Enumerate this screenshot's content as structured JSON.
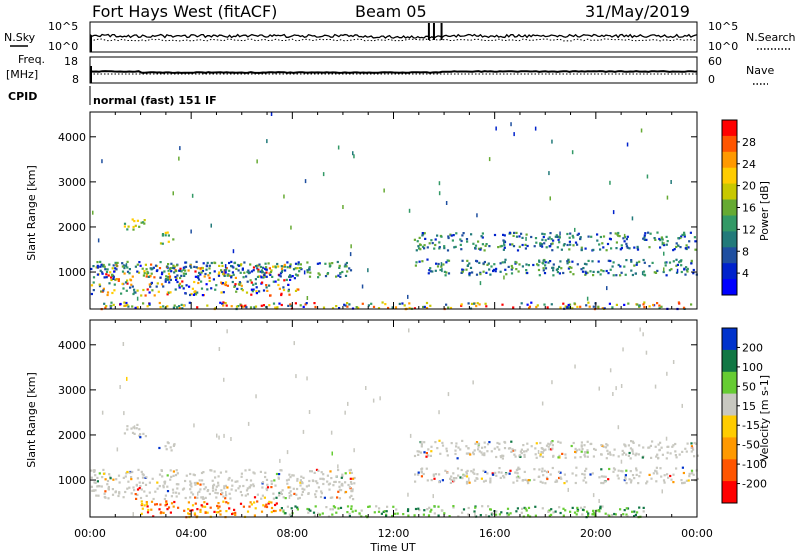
{
  "header": {
    "title": "Fort Hays West (fitACF)",
    "beam": "Beam 05",
    "date": "31/May/2019"
  },
  "top_panels": {
    "nsky_label": "N.Sky",
    "nsearch_label": "N.Search",
    "noise_ticks": [
      "10^5",
      "10^0"
    ],
    "freq_label": "Freq.",
    "freq_unit": "[MHz]",
    "freq_ticks": [
      "18",
      "8"
    ],
    "nave_label": "Nave",
    "nave_ticks": [
      "60",
      "0"
    ],
    "cpid_label": "CPID",
    "cpid_value": "normal (fast) 151 IF"
  },
  "x_axis": {
    "label": "Time UT",
    "ticks": [
      "00:00",
      "04:00",
      "08:00",
      "12:00",
      "16:00",
      "20:00",
      "00:00"
    ]
  },
  "chart_data": [
    {
      "type": "heatmap",
      "panel": "power",
      "ylabel": "Slant Range [km]",
      "y_ticks": [
        1000,
        2000,
        3000,
        4000
      ],
      "ylim": [
        180,
        4550
      ],
      "xlim_hours": [
        0,
        24
      ],
      "colorbar_label": "Power [dB]",
      "colorbar_ticks": [
        "28",
        "24",
        "20",
        "16",
        "12",
        "8",
        "4"
      ],
      "colorbar_colors": [
        "#ff0000",
        "#ff5500",
        "#ff9900",
        "#ffcc00",
        "#c8c800",
        "#66aa33",
        "#339966",
        "#227a7a",
        "#1f4fa0",
        "#0022cc",
        "#0000ff"
      ],
      "regions": [
        {
          "x": [
            0.0,
            8.2
          ],
          "y": [
            500,
            1200
          ],
          "level": "mixed"
        },
        {
          "x": [
            0.0,
            10.5
          ],
          "y": [
            900,
            1250
          ],
          "level": "low"
        },
        {
          "x": [
            1.3,
            2.2
          ],
          "y": [
            1950,
            2250
          ],
          "level": "mid"
        },
        {
          "x": [
            2.6,
            3.3
          ],
          "y": [
            1650,
            1900
          ],
          "level": "mid"
        },
        {
          "x": [
            12.8,
            24.0
          ],
          "y": [
            950,
            1300
          ],
          "level": "low"
        },
        {
          "x": [
            12.8,
            24.0
          ],
          "y": [
            1500,
            1900
          ],
          "level": "low"
        },
        {
          "x": [
            0.0,
            24.0
          ],
          "y": [
            200,
            350
          ],
          "level": "mixed"
        }
      ]
    },
    {
      "type": "heatmap",
      "panel": "velocity",
      "ylabel": "Slant Range [km]",
      "y_ticks": [
        1000,
        2000,
        3000,
        4000
      ],
      "ylim": [
        180,
        4550
      ],
      "xlim_hours": [
        0,
        24
      ],
      "colorbar_label": "Velocity [m s-1]",
      "colorbar_ticks": [
        "200",
        "100",
        "50",
        "15",
        "-15",
        "-50",
        "-100",
        "-200"
      ],
      "colorbar_colors": [
        "#0033cc",
        "#117744",
        "#66cc33",
        "#c8c8c0",
        "#ffcc00",
        "#ff9900",
        "#ff5500",
        "#ff0000"
      ],
      "regions": [
        {
          "x": [
            0.0,
            10.5
          ],
          "y": [
            600,
            1250
          ],
          "level": "near_zero"
        },
        {
          "x": [
            12.8,
            24.0
          ],
          "y": [
            950,
            1300
          ],
          "level": "near_zero"
        },
        {
          "x": [
            12.8,
            24.0
          ],
          "y": [
            1500,
            1900
          ],
          "level": "near_zero"
        },
        {
          "x": [
            1.3,
            2.2
          ],
          "y": [
            1950,
            2250
          ],
          "level": "near_zero"
        },
        {
          "x": [
            2.6,
            3.3
          ],
          "y": [
            1650,
            1900
          ],
          "level": "near_zero"
        },
        {
          "x": [
            2.0,
            7.5
          ],
          "y": [
            200,
            550
          ],
          "level": "negative"
        },
        {
          "x": [
            7.5,
            22.0
          ],
          "y": [
            200,
            450
          ],
          "level": "positive"
        }
      ]
    }
  ]
}
